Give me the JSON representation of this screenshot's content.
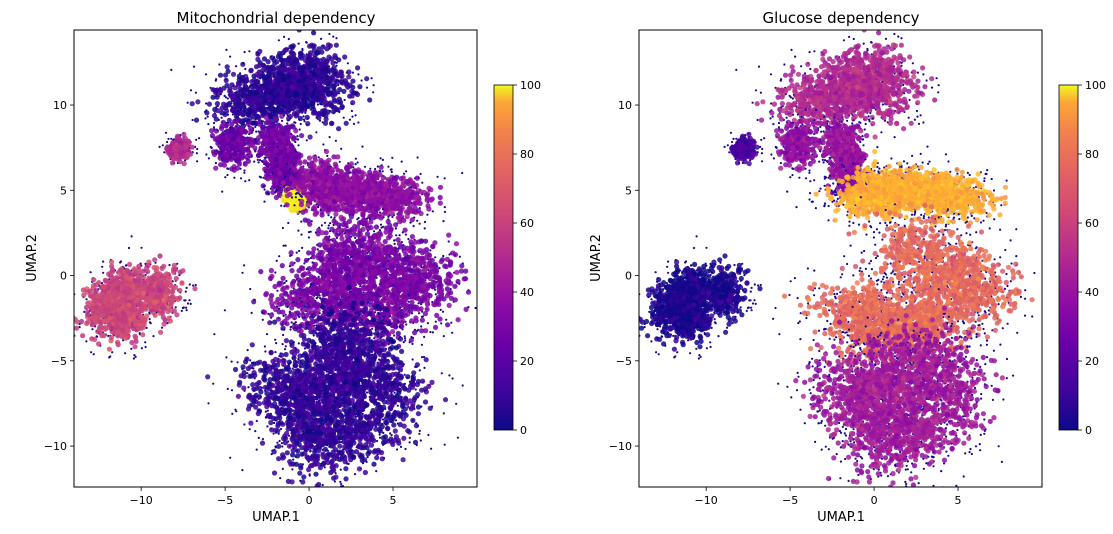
{
  "chart_data": [
    {
      "type": "scatter",
      "title": "Mitochondrial dependency",
      "xlabel": "UMAP.1",
      "ylabel": "UMAP.2",
      "xlim": [
        -14,
        10
      ],
      "ylim": [
        -12.4,
        14.4
      ],
      "xticks": [
        -10,
        -5,
        0,
        5
      ],
      "yticks": [
        -10,
        -5,
        0,
        5,
        10
      ],
      "colorbar": {
        "min": 0,
        "max": 100,
        "ticks": [
          0,
          20,
          40,
          60,
          80,
          100
        ],
        "colormap": "plasma"
      },
      "clusters": [
        {
          "cells": [
            [
              -1.5,
              10.8
            ],
            [
              -3.5,
              10.2
            ],
            [
              0.5,
              10.8
            ],
            [
              -0.5,
              12.0
            ]
          ],
          "spread": [
            1.5,
            1.1
          ],
          "value": 6
        },
        {
          "cells": [
            [
              -4.5,
              7.6
            ],
            [
              -2.0,
              7.8
            ],
            [
              -1.5,
              6.2
            ]
          ],
          "spread": [
            0.7,
            0.8
          ],
          "value": 22
        },
        {
          "cells": [
            [
              -7.8,
              7.4
            ]
          ],
          "spread": [
            0.4,
            0.35
          ],
          "value": 40
        },
        {
          "cells": [
            [
              -0.8,
              4.5
            ]
          ],
          "spread": [
            0.35,
            0.35
          ],
          "value": 97
        },
        {
          "cells": [
            [
              1.5,
              5.0
            ],
            [
              3.5,
              5.0
            ],
            [
              5.0,
              4.5
            ],
            [
              0.5,
              5.5
            ]
          ],
          "spread": [
            1.3,
            0.8
          ],
          "value": 30
        },
        {
          "cells": [
            [
              -11.0,
              -0.8
            ],
            [
              -11.0,
              -2.5
            ],
            [
              -9.0,
              -1.0
            ],
            [
              -12.0,
              -2.0
            ]
          ],
          "spread": [
            0.9,
            0.9
          ],
          "value": 50
        },
        {
          "cells": [
            [
              2.0,
              -0.5
            ],
            [
              5.0,
              0.5
            ],
            [
              0.0,
              -1.5
            ],
            [
              4.0,
              -2.0
            ],
            [
              6.5,
              -0.5
            ],
            [
              2.5,
              1.5
            ]
          ],
          "spread": [
            1.6,
            1.3
          ],
          "value": 24
        },
        {
          "cells": [
            [
              1.5,
              -6.0
            ],
            [
              0.0,
              -7.5
            ],
            [
              3.0,
              -5.0
            ],
            [
              -1.5,
              -6.5
            ],
            [
              2.5,
              -9.0
            ],
            [
              0.5,
              -9.5
            ],
            [
              4.5,
              -7.0
            ],
            [
              2.0,
              -4.0
            ]
          ],
          "spread": [
            1.7,
            1.5
          ],
          "value": 7
        }
      ]
    },
    {
      "type": "scatter",
      "title": "Glucose dependency",
      "xlabel": "UMAP.1",
      "ylabel": "UMAP.2",
      "xlim": [
        -14,
        10
      ],
      "ylim": [
        -12.4,
        14.4
      ],
      "xticks": [
        -10,
        -5,
        0,
        5
      ],
      "yticks": [
        -10,
        -5,
        0,
        5,
        10
      ],
      "colorbar": {
        "min": 0,
        "max": 100,
        "ticks": [
          0,
          20,
          40,
          60,
          80,
          100
        ],
        "colormap": "plasma"
      },
      "clusters": [
        {
          "cells": [
            [
              -1.5,
              10.8
            ],
            [
              -3.5,
              10.2
            ],
            [
              0.5,
              10.8
            ],
            [
              -0.5,
              12.0
            ]
          ],
          "spread": [
            1.5,
            1.1
          ],
          "value": 40
        },
        {
          "cells": [
            [
              -4.5,
              7.6
            ],
            [
              -2.0,
              7.8
            ],
            [
              -1.5,
              6.2
            ]
          ],
          "spread": [
            0.7,
            0.8
          ],
          "value": 32
        },
        {
          "cells": [
            [
              -7.8,
              7.4
            ]
          ],
          "spread": [
            0.4,
            0.35
          ],
          "value": 12
        },
        {
          "cells": [
            [
              0.5,
              5.0
            ],
            [
              2.0,
              5.0
            ],
            [
              3.5,
              5.0
            ],
            [
              5.0,
              4.5
            ],
            [
              -0.5,
              4.6
            ]
          ],
          "spread": [
            1.3,
            0.8
          ],
          "value": 82
        },
        {
          "cells": [
            [
              -11.0,
              -0.8
            ],
            [
              -11.0,
              -2.5
            ],
            [
              -9.0,
              -1.0
            ],
            [
              -12.0,
              -2.0
            ]
          ],
          "spread": [
            0.9,
            0.9
          ],
          "value": 3
        },
        {
          "cells": [
            [
              0.0,
              -3.0
            ],
            [
              2.0,
              -3.0
            ],
            [
              4.5,
              0.0
            ],
            [
              -1.0,
              -2.0
            ],
            [
              3.5,
              -2.5
            ],
            [
              6.0,
              -1.0
            ],
            [
              2.5,
              1.5
            ]
          ],
          "spread": [
            1.6,
            1.3
          ],
          "value": 62
        },
        {
          "cells": [
            [
              1.5,
              -6.0
            ],
            [
              0.0,
              -7.5
            ],
            [
              3.0,
              -5.0
            ],
            [
              -1.5,
              -6.5
            ],
            [
              2.5,
              -9.0
            ],
            [
              0.5,
              -9.5
            ],
            [
              4.5,
              -7.0
            ]
          ],
          "spread": [
            1.7,
            1.5
          ],
          "value": 35
        }
      ]
    }
  ]
}
